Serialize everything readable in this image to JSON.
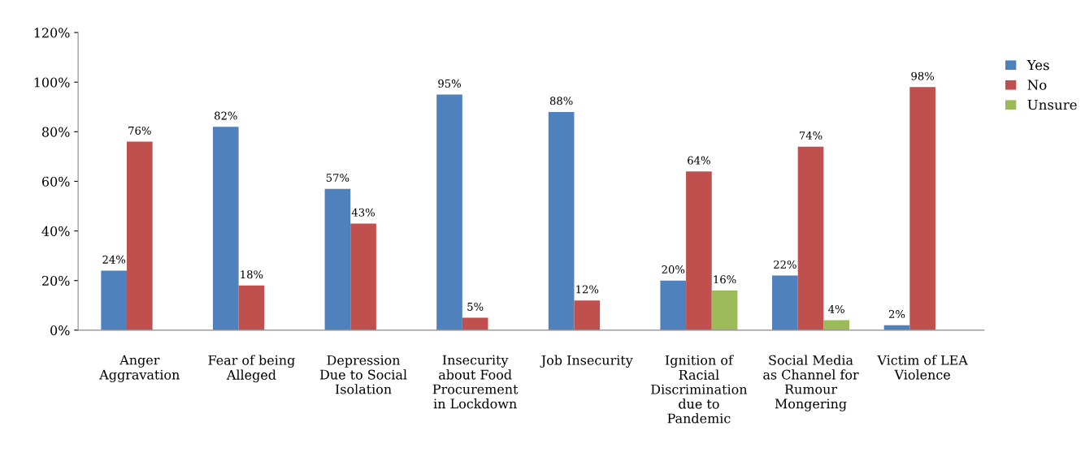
{
  "chart_data": {
    "type": "bar",
    "categories": [
      "Anger\nAggravation",
      "Fear of being\nAlleged",
      "Depression\nDue to Social\nIsolation",
      "Insecurity\nabout Food\nProcurement\nin Lockdown",
      "Job Insecurity",
      "Ignition of\nRacial\nDiscrimination\ndue to\nPandemic",
      "Social Media\nas Channel for\nRumour\nMongering",
      "Victim of LEA\nViolence"
    ],
    "series": [
      {
        "name": "Yes",
        "color": "#4f81bd",
        "values": [
          24,
          82,
          57,
          95,
          88,
          20,
          22,
          2
        ],
        "value_labels": [
          "24%",
          "82%",
          "57%",
          "95%",
          "88%",
          "20%",
          "22%",
          "2%"
        ]
      },
      {
        "name": "No",
        "color": "#c0504d",
        "values": [
          76,
          18,
          43,
          5,
          12,
          64,
          74,
          98
        ],
        "value_labels": [
          "76%",
          "18%",
          "43%",
          "5%",
          "12%",
          "64%",
          "74%",
          "98%"
        ]
      },
      {
        "name": "Unsure",
        "color": "#9bbb59",
        "values": [
          null,
          null,
          null,
          null,
          null,
          16,
          4,
          null
        ],
        "value_labels": [
          null,
          null,
          null,
          null,
          null,
          "16%",
          "4%",
          null
        ]
      }
    ],
    "ylim": [
      0,
      120
    ],
    "yticks": [
      {
        "value": 0,
        "label": "0%"
      },
      {
        "value": 20,
        "label": "20%"
      },
      {
        "value": 40,
        "label": "40%"
      },
      {
        "value": 60,
        "label": "60%"
      },
      {
        "value": 80,
        "label": "80%"
      },
      {
        "value": 100,
        "label": "100%"
      },
      {
        "value": 120,
        "label": "120%"
      }
    ],
    "grid": false,
    "legend": "right"
  }
}
